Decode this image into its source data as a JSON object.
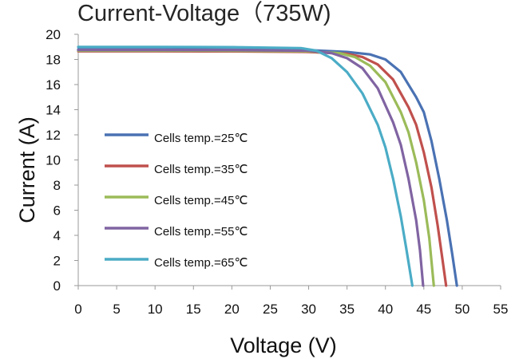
{
  "chart_data": {
    "type": "line",
    "title": "Current-Voltage（735W)",
    "xlabel": "Voltage (V)",
    "ylabel": "Current (A)",
    "xlim": [
      0,
      55
    ],
    "ylim": [
      0,
      20
    ],
    "x_ticks": [
      "0",
      "5",
      "10",
      "15",
      "20",
      "25",
      "30",
      "35",
      "40",
      "45",
      "50",
      "55"
    ],
    "y_ticks": [
      "0",
      "2",
      "4",
      "6",
      "8",
      "10",
      "12",
      "14",
      "16",
      "18",
      "20"
    ],
    "grid": false,
    "legend_position": "left",
    "series": [
      {
        "name": "Cells temp.=25℃",
        "color": "#4a72b3",
        "points": [
          [
            0,
            18.8
          ],
          [
            10,
            18.8
          ],
          [
            20,
            18.78
          ],
          [
            30,
            18.74
          ],
          [
            35,
            18.6
          ],
          [
            38,
            18.4
          ],
          [
            40,
            18.0
          ],
          [
            42,
            17.0
          ],
          [
            44,
            15.0
          ],
          [
            45,
            13.8
          ],
          [
            46,
            11.5
          ],
          [
            47,
            8.5
          ],
          [
            48,
            5.2
          ],
          [
            48.7,
            2.5
          ],
          [
            49.3,
            0
          ]
        ]
      },
      {
        "name": "Cells temp.=35℃",
        "color": "#c0504d",
        "points": [
          [
            0,
            18.65
          ],
          [
            10,
            18.65
          ],
          [
            20,
            18.64
          ],
          [
            30,
            18.6
          ],
          [
            35,
            18.45
          ],
          [
            37,
            18.2
          ],
          [
            39,
            17.6
          ],
          [
            41,
            16.4
          ],
          [
            43,
            14.2
          ],
          [
            44,
            12.8
          ],
          [
            45,
            10.6
          ],
          [
            46,
            7.8
          ],
          [
            46.8,
            4.8
          ],
          [
            47.4,
            2.2
          ],
          [
            47.9,
            0
          ]
        ]
      },
      {
        "name": "Cells temp.=45℃",
        "color": "#9bbb59",
        "points": [
          [
            0,
            18.7
          ],
          [
            10,
            18.7
          ],
          [
            20,
            18.69
          ],
          [
            30,
            18.65
          ],
          [
            34,
            18.5
          ],
          [
            36,
            18.2
          ],
          [
            38,
            17.5
          ],
          [
            40,
            16.2
          ],
          [
            42,
            13.8
          ],
          [
            43,
            12.2
          ],
          [
            44,
            9.8
          ],
          [
            45,
            6.8
          ],
          [
            45.7,
            3.8
          ],
          [
            46.3,
            0
          ]
        ]
      },
      {
        "name": "Cells temp.=55℃",
        "color": "#8064a2",
        "points": [
          [
            0,
            18.75
          ],
          [
            10,
            18.75
          ],
          [
            20,
            18.74
          ],
          [
            30,
            18.7
          ],
          [
            33,
            18.5
          ],
          [
            35,
            18.1
          ],
          [
            37,
            17.3
          ],
          [
            39,
            15.7
          ],
          [
            41,
            13.0
          ],
          [
            42,
            11.2
          ],
          [
            43,
            8.5
          ],
          [
            44,
            5.2
          ],
          [
            44.5,
            2.8
          ],
          [
            44.9,
            0
          ]
        ]
      },
      {
        "name": "Cells temp.=65℃",
        "color": "#4bacc6",
        "points": [
          [
            0,
            19.0
          ],
          [
            10,
            19.0
          ],
          [
            20,
            18.98
          ],
          [
            29,
            18.9
          ],
          [
            31,
            18.7
          ],
          [
            33,
            18.1
          ],
          [
            35,
            17.0
          ],
          [
            37,
            15.3
          ],
          [
            39,
            12.8
          ],
          [
            40,
            11.0
          ],
          [
            41,
            8.5
          ],
          [
            42,
            5.5
          ],
          [
            42.7,
            3.0
          ],
          [
            43.5,
            0
          ]
        ]
      }
    ]
  }
}
